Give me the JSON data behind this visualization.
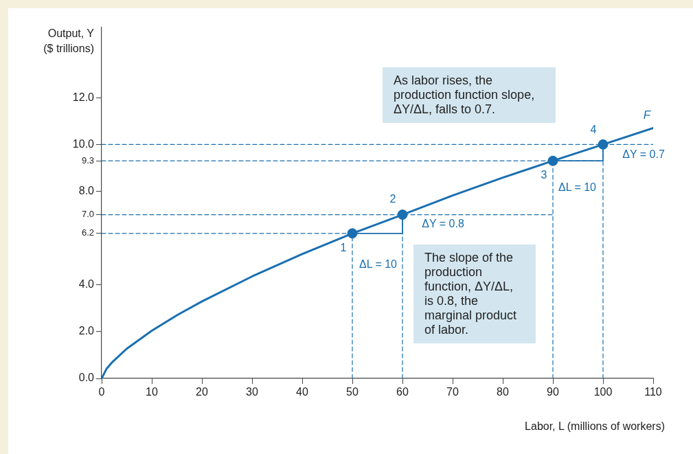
{
  "chart_data": {
    "type": "line",
    "xlabel": "Labor, L (millions of workers)",
    "ylabel": "Output, Y\n($ trillions)",
    "xlim": [
      0,
      110
    ],
    "xticks": [
      0,
      10,
      20,
      30,
      40,
      50,
      60,
      70,
      80,
      90,
      100,
      110
    ],
    "ylim": [
      0,
      15
    ],
    "yticks": [
      {
        "value": 0,
        "label": "0.0"
      },
      {
        "value": 2,
        "label": "2.0"
      },
      {
        "value": 4,
        "label": "4.0"
      },
      {
        "value": 6.2,
        "label": "6.2"
      },
      {
        "value": 7,
        "label": "7.0"
      },
      {
        "value": 8,
        "label": "8.0"
      },
      {
        "value": 9.3,
        "label": "9.3"
      },
      {
        "value": 10,
        "label": "10.0"
      },
      {
        "value": 12,
        "label": "12.0"
      }
    ],
    "grid": false,
    "legend": false,
    "series": [
      {
        "name": "F",
        "color": "#1a6fb0",
        "x": [
          0,
          1,
          2,
          5,
          10,
          15,
          20,
          30,
          40,
          50,
          60,
          70,
          80,
          90,
          100,
          110
        ],
        "values": [
          0,
          0.42,
          0.67,
          1.27,
          2.04,
          2.7,
          3.29,
          4.36,
          5.32,
          6.2,
          7.0,
          7.82,
          8.58,
          9.3,
          10.0,
          10.7
        ]
      },
      {
        "type": "scatter",
        "color": "#1a6fb0",
        "marker": "circle",
        "x": [
          50,
          60,
          90,
          100
        ],
        "values": [
          6.2,
          7.0,
          9.3,
          10.0
        ]
      },
      {
        "color": "#1a6fb0",
        "x": [
          50,
          60,
          60
        ],
        "values": [
          6.2,
          6.2,
          7.0
        ]
      },
      {
        "color": "#1a6fb0",
        "x": [
          90,
          100,
          100
        ],
        "values": [
          9.3,
          9.3,
          10.0
        ]
      },
      {
        "color": "#1a6fb0",
        "line_style": "dashed",
        "x": [
          0,
          50
        ],
        "values": [
          6.2,
          6.2
        ]
      },
      {
        "color": "#1a6fb0",
        "line_style": "dashed",
        "x": [
          0,
          90
        ],
        "values": [
          7.0,
          7.0
        ]
      },
      {
        "color": "#1a6fb0",
        "line_style": "dashed",
        "x": [
          0,
          100
        ],
        "values": [
          9.3,
          9.3
        ]
      },
      {
        "color": "#1a6fb0",
        "line_style": "dashed",
        "x": [
          0,
          110
        ],
        "values": [
          10.0,
          10.0
        ]
      },
      {
        "color": "#1a6fb0",
        "line_style": "dashed",
        "x": [
          50,
          50
        ],
        "values": [
          0,
          6.2
        ]
      },
      {
        "color": "#1a6fb0",
        "line_style": "dashed",
        "x": [
          60,
          60
        ],
        "values": [
          0,
          7.0
        ]
      },
      {
        "color": "#1a6fb0",
        "line_style": "dashed",
        "x": [
          90,
          90
        ],
        "values": [
          0,
          9.3
        ]
      },
      {
        "color": "#1a6fb0",
        "line_style": "dashed",
        "x": [
          100,
          100
        ],
        "values": [
          0,
          10.0
        ]
      }
    ],
    "annotations": [
      {
        "text": "1",
        "x": 50,
        "y": 6.2
      },
      {
        "text": "2",
        "x": 60,
        "y": 7.0
      },
      {
        "text": "3",
        "x": 90,
        "y": 9.3
      },
      {
        "text": "4",
        "x": 100,
        "y": 10.0
      },
      {
        "text": "ΔY = 0.8",
        "x": 60,
        "y": 6.6
      },
      {
        "text": "ΔL = 10",
        "x": 55,
        "y": 6.2
      },
      {
        "text": "ΔY = 0.7",
        "x": 100,
        "y": 9.65
      },
      {
        "text": "ΔL = 10",
        "x": 95,
        "y": 9.3
      },
      "As labor rises, the production function slope, ΔY/ΔL, falls to 0.7.",
      "The slope of the production function, ΔY/ΔL, is 0.8, the marginal product of labor."
    ]
  }
}
